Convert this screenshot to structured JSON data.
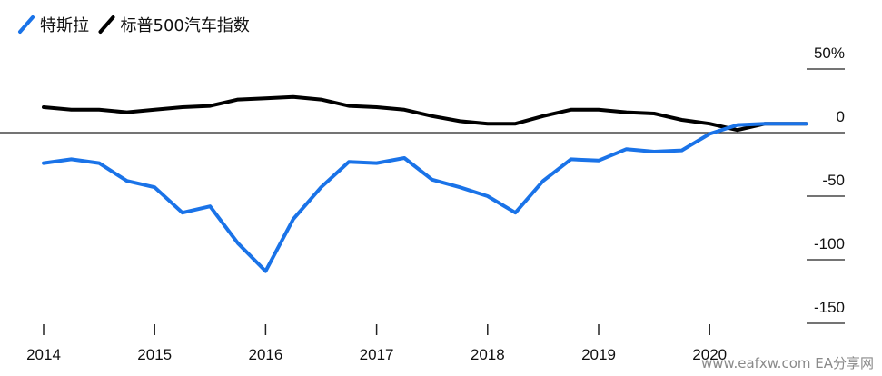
{
  "chart_data": {
    "type": "line",
    "title": "",
    "xlabel": "",
    "ylabel": "",
    "ylim": [
      -160,
      65
    ],
    "y_ticks": [
      50,
      0,
      -50,
      -100,
      -150
    ],
    "y_tick_labels": [
      "50%",
      "0",
      "-50",
      "-100",
      "-150"
    ],
    "x_ticks": [
      2014,
      2015,
      2016,
      2017,
      2018,
      2019,
      2020
    ],
    "x_tick_labels": [
      "2014",
      "2015",
      "2016",
      "2017",
      "2018",
      "2019",
      "2020"
    ],
    "xlim": [
      2013.9,
      2021.0
    ],
    "grid": false,
    "legend_position": "top-left",
    "zero_line": true,
    "series": [
      {
        "name": "特斯拉",
        "color": "#1a73e8",
        "x": [
          2014.0,
          2014.25,
          2014.5,
          2014.75,
          2015.0,
          2015.25,
          2015.5,
          2015.75,
          2016.0,
          2016.25,
          2016.5,
          2016.75,
          2017.0,
          2017.25,
          2017.5,
          2017.75,
          2018.0,
          2018.25,
          2018.5,
          2018.75,
          2019.0,
          2019.25,
          2019.5,
          2019.75,
          2020.0,
          2020.25,
          2020.5,
          2020.75,
          2020.87
        ],
        "values": [
          -24,
          -21,
          -24,
          -38,
          -43,
          -63,
          -58,
          -87,
          -109,
          -68,
          -43,
          -23,
          -24,
          -20,
          -37,
          -43,
          -50,
          -63,
          -38,
          -21,
          -22,
          -13,
          -15,
          -14,
          -1,
          6,
          7,
          7,
          7
        ]
      },
      {
        "name": "标普500汽车指数",
        "color": "#000000",
        "x": [
          2014.0,
          2014.25,
          2014.5,
          2014.75,
          2015.0,
          2015.25,
          2015.5,
          2015.75,
          2016.0,
          2016.25,
          2016.5,
          2016.75,
          2017.0,
          2017.25,
          2017.5,
          2017.75,
          2018.0,
          2018.25,
          2018.5,
          2018.75,
          2019.0,
          2019.25,
          2019.5,
          2019.75,
          2020.0,
          2020.25,
          2020.5,
          2020.75,
          2020.87
        ],
        "values": [
          20,
          18,
          18,
          16,
          18,
          20,
          21,
          26,
          27,
          28,
          26,
          21,
          20,
          18,
          13,
          9,
          7,
          7,
          13,
          18,
          18,
          16,
          15,
          10,
          7,
          2,
          7,
          7,
          7
        ]
      }
    ]
  },
  "watermark": {
    "text": "www.eafxw.com  EA分享网"
  }
}
